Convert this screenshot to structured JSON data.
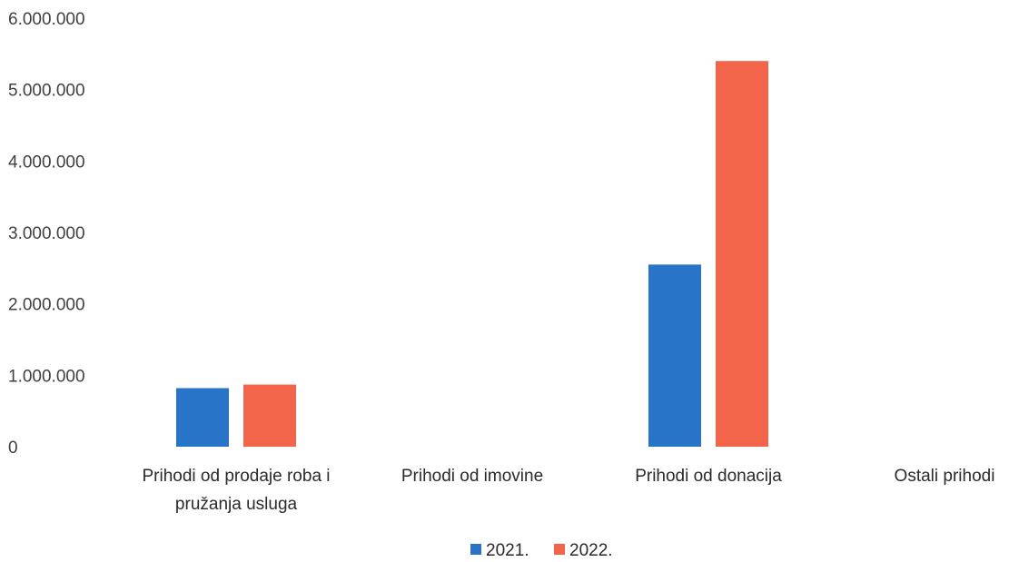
{
  "chart_data": {
    "type": "bar",
    "categories": [
      [
        "Prihodi od prodaje roba i",
        "pružanja usluga"
      ],
      [
        "Prihodi od imovine"
      ],
      [
        "Prihodi od donacija"
      ],
      [
        "Ostali prihodi"
      ]
    ],
    "series": [
      {
        "name": "2021.",
        "color": "#2874C8",
        "values": [
          820000,
          0,
          2550000,
          0
        ]
      },
      {
        "name": "2022.",
        "color": "#F2654A",
        "values": [
          870000,
          0,
          5400000,
          0
        ]
      }
    ],
    "ylim": [
      0,
      6000000
    ],
    "yticks": [
      0,
      1000000,
      2000000,
      3000000,
      4000000,
      5000000,
      6000000
    ],
    "ytick_labels": [
      "0",
      "1.000.000",
      "2.000.000",
      "3.000.000",
      "4.000.000",
      "5.000.000",
      "6.000.000"
    ],
    "grid": false,
    "legend_position": "bottom"
  }
}
